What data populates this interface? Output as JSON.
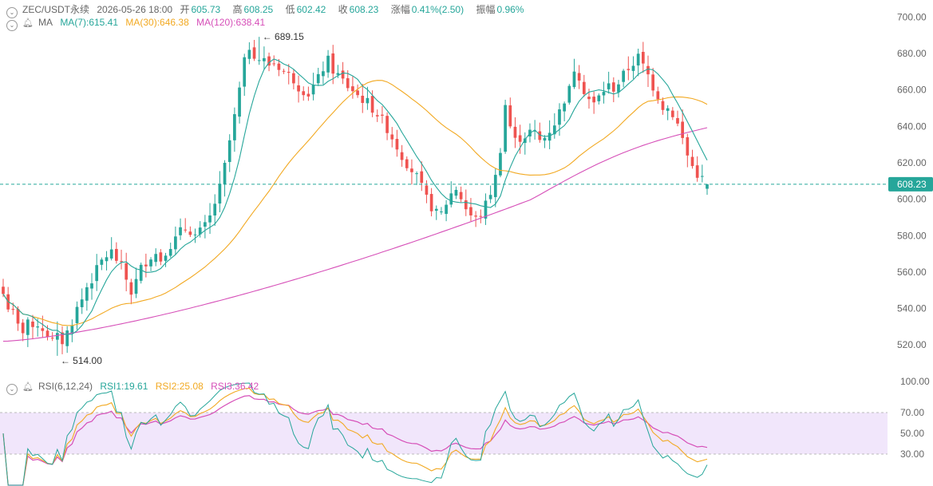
{
  "header": {
    "symbol": "ZEC/USDT永续",
    "datetime": "2026-05-26 18:00",
    "open_label": "开",
    "open": "605.73",
    "high_label": "高",
    "high": "608.25",
    "low_label": "低",
    "low": "602.42",
    "close_label": "收",
    "close": "608.23",
    "change_label": "涨幅",
    "change": "0.41%(2.50)",
    "amplitude_label": "振幅",
    "amplitude": "0.96%"
  },
  "ma_legend": {
    "name": "MA",
    "ma7": "MA(7):615.41",
    "ma30": "MA(30):646.38",
    "ma120": "MA(120):638.41"
  },
  "rsi_legend": {
    "name": "RSI(6,12,24)",
    "rsi1": "RSI1:19.61",
    "rsi2": "RSI2:25.08",
    "rsi3": "RSI3:36.42"
  },
  "colors": {
    "up": "#26a69a",
    "down": "#ef5350",
    "ma7": "#26a69a",
    "ma30": "#f2a922",
    "ma120": "#d64fb8",
    "rsi1": "#26a69a",
    "rsi2": "#f2a922",
    "rsi3": "#d64fb8",
    "rsi_band": "#f1e6fb",
    "price_line": "#26a69a"
  },
  "chart_data": [
    {
      "type": "candlestick",
      "title": "ZEC/USDT永续",
      "y_ticks": [
        "700.00",
        "680.00",
        "660.00",
        "640.00",
        "620.00",
        "600.00",
        "580.00",
        "560.00",
        "540.00",
        "520.00"
      ],
      "ylim": [
        510,
        705
      ],
      "last_price_label": "608.23",
      "last_price": 608.23,
      "annotations": [
        {
          "text": "689.15",
          "x_index": 52,
          "value": 689.15
        },
        {
          "text": "514.00",
          "x_index": 11,
          "value": 514.0
        }
      ],
      "close_series_approx": [
        548,
        541,
        537,
        530,
        528,
        534,
        527,
        532,
        529,
        526,
        522,
        524,
        522,
        527,
        533,
        540,
        545,
        552,
        556,
        561,
        566,
        569,
        571,
        567,
        563,
        556,
        549,
        555,
        562,
        566,
        569,
        570,
        567,
        572,
        575,
        578,
        582,
        584,
        583,
        580,
        582,
        585,
        590,
        598,
        606,
        618,
        632,
        645,
        660,
        675,
        684,
        680,
        677,
        676,
        674,
        675,
        673,
        670,
        668,
        666,
        662,
        660,
        658,
        662,
        666,
        672,
        676,
        671,
        668,
        665,
        662,
        660,
        657,
        655,
        653,
        650,
        647,
        643,
        639,
        634,
        629,
        624,
        620,
        616,
        612,
        606,
        600,
        596,
        592,
        592,
        598,
        603,
        606,
        601,
        595,
        591,
        589,
        592,
        597,
        604,
        612,
        628,
        652,
        640,
        632,
        634,
        635,
        637,
        636,
        632,
        634,
        638,
        642,
        648,
        655,
        660,
        672,
        668,
        660,
        655,
        652,
        656,
        660,
        662,
        661,
        664,
        668,
        672,
        675,
        678,
        673,
        668,
        662,
        657,
        651,
        650,
        647,
        641,
        633,
        624,
        618,
        614,
        611,
        608
      ],
      "series_lines": [
        {
          "name": "MA(7)",
          "last": 615.41
        },
        {
          "name": "MA(30)",
          "last": 646.38
        },
        {
          "name": "MA(120)",
          "last": 638.41
        }
      ]
    },
    {
      "type": "line",
      "title": "RSI(6,12,24)",
      "y_ticks": [
        "100.00",
        "70.00",
        "50.00",
        "30.00"
      ],
      "ylim": [
        0,
        100
      ],
      "band": [
        30,
        70
      ],
      "series": [
        {
          "name": "RSI1",
          "last": 19.61
        },
        {
          "name": "RSI2",
          "last": 25.08
        },
        {
          "name": "RSI3",
          "last": 36.42
        }
      ]
    }
  ]
}
